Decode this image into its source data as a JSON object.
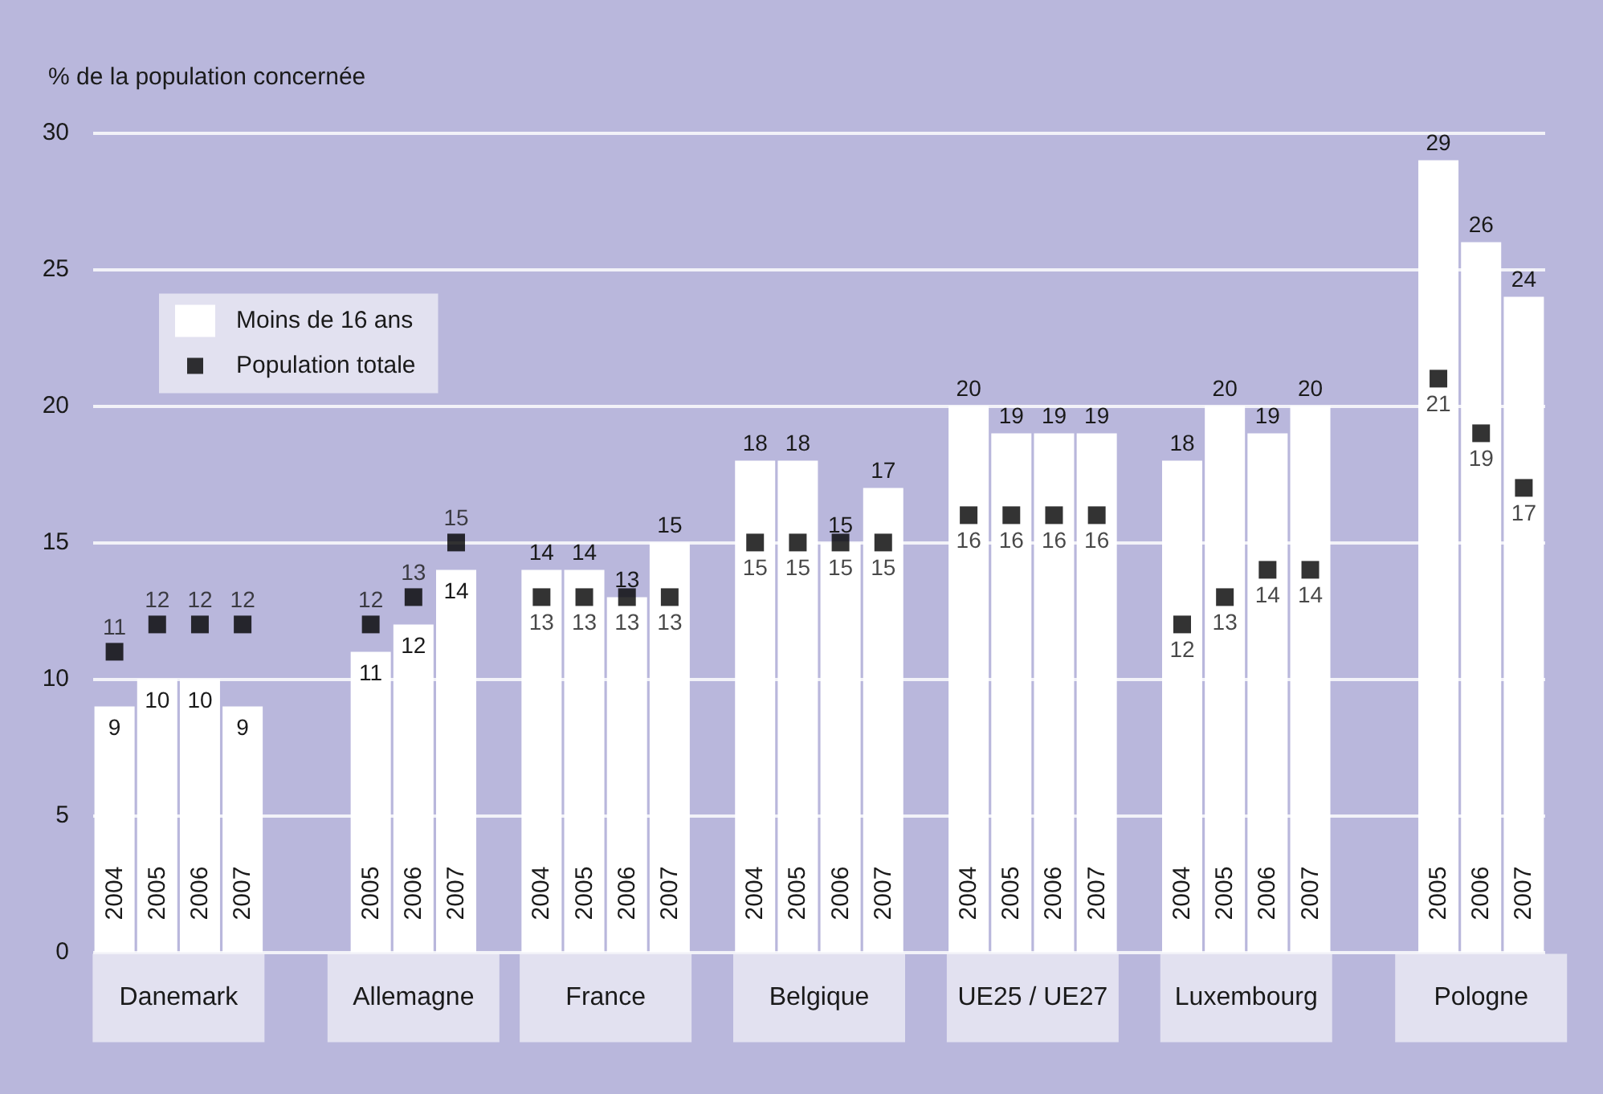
{
  "chart_data": {
    "type": "bar",
    "ylabel": "% de la population concernée",
    "categories": [
      "2004",
      "2005",
      "2006",
      "2007",
      null,
      null,
      "2005",
      "2006",
      "2007",
      null,
      "2004",
      "2005",
      "2006",
      "2007",
      null,
      "2004",
      "2005",
      "2006",
      "2007",
      null,
      "2004",
      "2005",
      "2006",
      "2007",
      null,
      "2004",
      "2005",
      "2006",
      "2007",
      null,
      null,
      "2005",
      "2006",
      "2007"
    ],
    "series": [
      {
        "name": "Moins de 16 ans",
        "color": "#ffffff",
        "values": [
          9,
          10,
          10,
          9,
          null,
          null,
          11,
          12,
          14,
          null,
          14,
          14,
          13,
          15,
          null,
          18,
          18,
          15,
          17,
          null,
          20,
          19,
          19,
          19,
          null,
          18,
          20,
          19,
          20,
          null,
          null,
          29,
          26,
          24
        ]
      },
      {
        "name": "Population totale",
        "type": "scatter",
        "color": "#000000",
        "values": [
          11,
          12,
          12,
          12,
          null,
          null,
          12,
          13,
          15,
          null,
          13,
          13,
          13,
          13,
          null,
          15,
          15,
          15,
          15,
          null,
          16,
          16,
          16,
          16,
          null,
          12,
          13,
          14,
          14,
          null,
          null,
          21,
          19,
          17
        ]
      }
    ],
    "annotations": [
      "Danemark",
      "Allemagne",
      "France",
      "Belgique",
      "UE25 / UE27",
      "Luxembourg",
      "Pologne"
    ],
    "ylim": [
      0,
      30
    ],
    "yticks": [
      0,
      5,
      10,
      15,
      20,
      25,
      30
    ],
    "grid": "y",
    "legend": "top left",
    "marker": "square",
    "data_labels": true
  }
}
